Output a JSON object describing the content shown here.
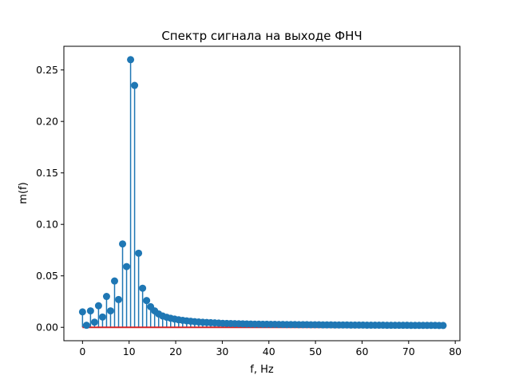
{
  "chart_data": {
    "type": "stem",
    "title": "Спектр сигнала на выходе ФНЧ",
    "xlabel": "f, Hz",
    "ylabel": "m(f)",
    "xlim": [
      -4,
      81
    ],
    "ylim": [
      -0.013,
      0.273
    ],
    "xticks": [
      0,
      10,
      20,
      30,
      40,
      50,
      60,
      70,
      80
    ],
    "yticks": [
      0.0,
      0.05,
      0.1,
      0.15,
      0.2,
      0.25
    ],
    "ytick_labels": [
      "0.00",
      "0.05",
      "0.10",
      "0.15",
      "0.20",
      "0.25"
    ],
    "grid": false,
    "baseline": 0,
    "colors": {
      "stem": "#1f77b4",
      "baseline": "#d62728",
      "axis": "#000000"
    },
    "series": [
      {
        "x": [
          0.0,
          0.86,
          1.72,
          2.58,
          3.44,
          4.3,
          5.16,
          6.02,
          6.88,
          7.74,
          8.6,
          9.46,
          10.32,
          11.18,
          12.04,
          12.9,
          13.76,
          14.62,
          15.48,
          16.34,
          17.2,
          18.06,
          18.92,
          19.78,
          20.64,
          21.5,
          22.36,
          23.22,
          24.08,
          24.94,
          25.8,
          26.66,
          27.52,
          28.38,
          29.24,
          30.1,
          30.96,
          31.82,
          32.68,
          33.54,
          34.4,
          35.26,
          36.12,
          36.98,
          37.84,
          38.7,
          39.56,
          40.42,
          41.28,
          42.14,
          43.0,
          43.86,
          44.72,
          45.58,
          46.44,
          47.3,
          48.16,
          49.02,
          49.88,
          50.74,
          51.6,
          52.46,
          53.32,
          54.18,
          55.04,
          55.9,
          56.76,
          57.62,
          58.48,
          59.34,
          60.2,
          61.06,
          61.92,
          62.78,
          63.64,
          64.5,
          65.36,
          66.22,
          67.08,
          67.94,
          68.8,
          69.66,
          70.52,
          71.38,
          72.24,
          73.1,
          73.96,
          74.82,
          75.68,
          76.54,
          77.4
        ],
        "values": [
          0.015,
          0.002,
          0.016,
          0.005,
          0.021,
          0.01,
          0.03,
          0.016,
          0.045,
          0.027,
          0.081,
          0.059,
          0.26,
          0.235,
          0.072,
          0.038,
          0.026,
          0.02,
          0.016,
          0.013,
          0.011,
          0.0098,
          0.0088,
          0.008,
          0.0073,
          0.0068,
          0.0063,
          0.0059,
          0.0055,
          0.0052,
          0.0049,
          0.0047,
          0.0045,
          0.0043,
          0.0041,
          0.0039,
          0.0038,
          0.0037,
          0.0036,
          0.0035,
          0.0034,
          0.0033,
          0.0032,
          0.0031,
          0.0031,
          0.003,
          0.003,
          0.0029,
          0.0029,
          0.0028,
          0.0028,
          0.0027,
          0.0027,
          0.0027,
          0.0026,
          0.0026,
          0.0026,
          0.0025,
          0.0025,
          0.0025,
          0.0024,
          0.0024,
          0.0024,
          0.0023,
          0.0023,
          0.0023,
          0.0023,
          0.0022,
          0.0022,
          0.0022,
          0.0022,
          0.0021,
          0.0021,
          0.0021,
          0.0021,
          0.0021,
          0.002,
          0.002,
          0.002,
          0.002,
          0.002,
          0.002,
          0.0019,
          0.0019,
          0.0019,
          0.0019,
          0.0019,
          0.0019,
          0.0019,
          0.0018,
          0.0018
        ]
      }
    ]
  }
}
